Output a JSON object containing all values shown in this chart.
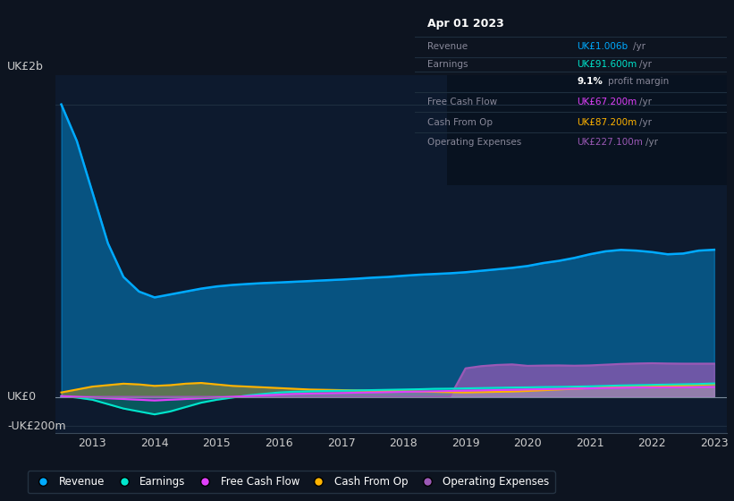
{
  "bg_color": "#0d1420",
  "plot_bg_color": "#0d1a2e",
  "panel_bg_color": "#0a1020",
  "title_box": {
    "date": "Apr 01 2023",
    "revenue_label": "Revenue",
    "revenue_value": "UK£1.006b",
    "revenue_color": "#00aaff",
    "earnings_label": "Earnings",
    "earnings_value": "UK£91.600m",
    "earnings_color": "#00e5cc",
    "profit_margin": "9.1% profit margin",
    "fcf_label": "Free Cash Flow",
    "fcf_value": "UK£67.200m",
    "fcf_color": "#e040fb",
    "cashfromop_label": "Cash From Op",
    "cashfromop_value": "UK£87.200m",
    "cashfromop_color": "#ffb300",
    "opex_label": "Operating Expenses",
    "opex_value": "UK£227.100m",
    "opex_color": "#9b59b6"
  },
  "years": [
    2012.5,
    2012.75,
    2013.0,
    2013.25,
    2013.5,
    2013.75,
    2014.0,
    2014.25,
    2014.5,
    2014.75,
    2015.0,
    2015.25,
    2015.5,
    2015.75,
    2016.0,
    2016.25,
    2016.5,
    2016.75,
    2017.0,
    2017.25,
    2017.5,
    2017.75,
    2018.0,
    2018.25,
    2018.5,
    2018.75,
    2019.0,
    2019.25,
    2019.5,
    2019.75,
    2020.0,
    2020.25,
    2020.5,
    2020.75,
    2021.0,
    2021.25,
    2021.5,
    2021.75,
    2022.0,
    2022.25,
    2022.5,
    2022.75,
    2023.0
  ],
  "revenue": [
    2000,
    1750,
    1400,
    1050,
    820,
    720,
    680,
    700,
    720,
    740,
    755,
    765,
    772,
    778,
    782,
    787,
    792,
    797,
    802,
    808,
    815,
    820,
    828,
    835,
    840,
    845,
    852,
    862,
    872,
    882,
    895,
    915,
    930,
    950,
    975,
    995,
    1005,
    1000,
    990,
    975,
    980,
    1000,
    1006
  ],
  "earnings": [
    5,
    -5,
    -20,
    -50,
    -80,
    -100,
    -120,
    -100,
    -70,
    -40,
    -20,
    -5,
    10,
    20,
    30,
    35,
    38,
    40,
    42,
    44,
    46,
    48,
    50,
    52,
    55,
    56,
    58,
    60,
    62,
    64,
    65,
    67,
    68,
    70,
    72,
    75,
    78,
    80,
    82,
    84,
    86,
    88,
    91.6
  ],
  "free_cash_flow": [
    5,
    0,
    -5,
    -10,
    -15,
    -20,
    -25,
    -20,
    -15,
    -10,
    -5,
    0,
    5,
    10,
    15,
    20,
    22,
    24,
    26,
    28,
    30,
    32,
    34,
    36,
    38,
    40,
    42,
    44,
    46,
    48,
    50,
    52,
    54,
    56,
    58,
    60,
    62,
    64,
    64,
    65,
    65,
    66,
    67.2
  ],
  "cash_from_op": [
    30,
    50,
    70,
    80,
    90,
    85,
    75,
    80,
    90,
    95,
    85,
    75,
    70,
    65,
    60,
    55,
    50,
    48,
    46,
    44,
    42,
    40,
    38,
    36,
    34,
    32,
    30,
    32,
    34,
    36,
    40,
    45,
    50,
    55,
    60,
    65,
    70,
    72,
    74,
    76,
    78,
    82,
    87.2
  ],
  "operating_expenses": [
    0,
    0,
    0,
    0,
    0,
    0,
    0,
    0,
    0,
    0,
    0,
    0,
    0,
    0,
    0,
    0,
    0,
    0,
    0,
    0,
    0,
    0,
    0,
    0,
    0,
    0,
    195,
    210,
    218,
    222,
    212,
    214,
    215,
    213,
    215,
    220,
    225,
    228,
    230,
    228,
    227,
    227,
    227.1
  ],
  "ylim": [
    -250,
    2200
  ],
  "ytick_positions": [
    -200,
    0,
    2000
  ],
  "ytick_labels": [
    "-UK£200m",
    "UK£0",
    "UK£2b"
  ],
  "xticks": [
    2013,
    2014,
    2015,
    2016,
    2017,
    2018,
    2019,
    2020,
    2021,
    2022,
    2023
  ],
  "revenue_color": "#00aaff",
  "earnings_color": "#00e5cc",
  "fcf_color": "#e040fb",
  "cashfromop_color": "#ffb300",
  "opex_color": "#9b59b6",
  "legend_items": [
    "Revenue",
    "Earnings",
    "Free Cash Flow",
    "Cash From Op",
    "Operating Expenses"
  ],
  "legend_colors": [
    "#00aaff",
    "#00e5cc",
    "#e040fb",
    "#ffb300",
    "#9b59b6"
  ]
}
